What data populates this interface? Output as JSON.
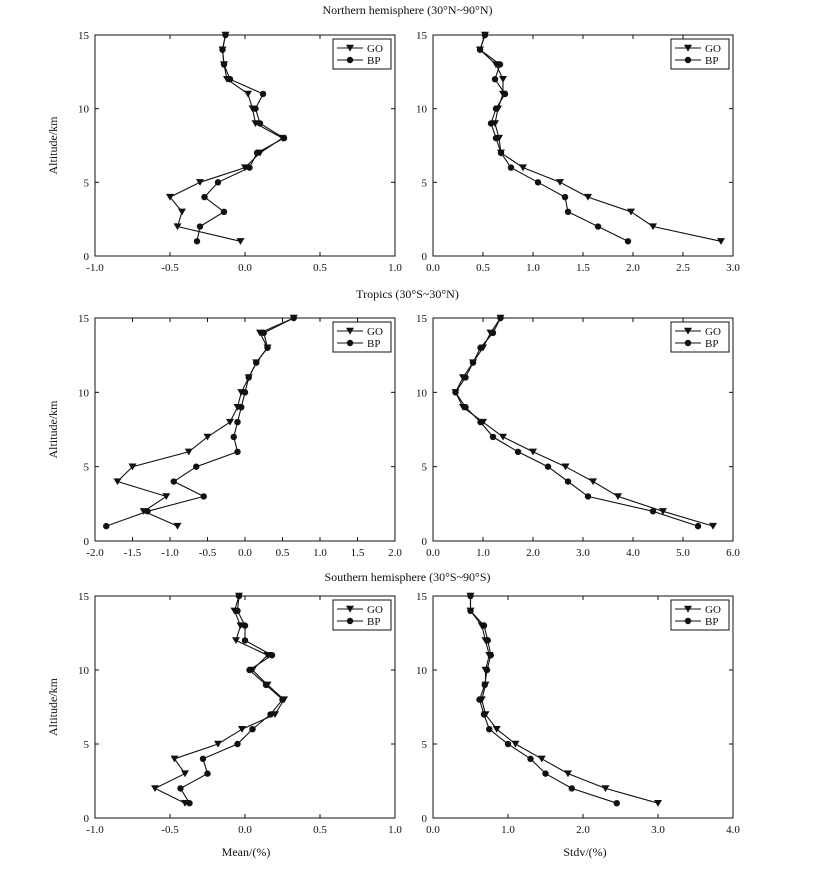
{
  "figure": {
    "rows": [
      {
        "title": "Northern hemisphere (30°N~90°N)"
      },
      {
        "title": "Tropics (30°S~30°N)"
      },
      {
        "title": "Southern hemisphere (30°S~90°S)"
      }
    ],
    "xlabel_mean": "Mean/(%)",
    "xlabel_stdv": "Stdv/(%)",
    "colors": {
      "line": "#111111",
      "background": "#ffffff"
    }
  },
  "chart_data": [
    {
      "type": "line",
      "ylabel": "Altitude/km",
      "xlim": [
        -1.0,
        1.0
      ],
      "ylim": [
        0,
        15
      ],
      "xticks": [
        "-1.0",
        "-0.5",
        "0.0",
        "0.5",
        "1.0"
      ],
      "yticks": [
        "0",
        "5",
        "10",
        "15"
      ],
      "legend": {
        "position": "top-right",
        "entries": [
          "GO",
          "BP"
        ]
      },
      "series": [
        {
          "name": "GO",
          "marker": "triangle-down",
          "points": [
            [
              -0.13,
              15
            ],
            [
              -0.15,
              14
            ],
            [
              -0.14,
              13
            ],
            [
              -0.12,
              12
            ],
            [
              0.02,
              11
            ],
            [
              0.05,
              10
            ],
            [
              0.07,
              9
            ],
            [
              0.25,
              8
            ],
            [
              0.1,
              7
            ],
            [
              0.0,
              6
            ],
            [
              -0.3,
              5
            ],
            [
              -0.5,
              4
            ],
            [
              -0.42,
              3
            ],
            [
              -0.45,
              2
            ],
            [
              -0.03,
              1
            ]
          ]
        },
        {
          "name": "BP",
          "marker": "circle",
          "points": [
            [
              -0.13,
              15
            ],
            [
              -0.15,
              14
            ],
            [
              -0.14,
              13
            ],
            [
              -0.1,
              12
            ],
            [
              0.12,
              11
            ],
            [
              0.07,
              10
            ],
            [
              0.1,
              9
            ],
            [
              0.26,
              8
            ],
            [
              0.08,
              7
            ],
            [
              0.03,
              6
            ],
            [
              -0.18,
              5
            ],
            [
              -0.27,
              4
            ],
            [
              -0.14,
              3
            ],
            [
              -0.3,
              2
            ],
            [
              -0.32,
              1
            ]
          ]
        }
      ]
    },
    {
      "type": "line",
      "ylabel": "",
      "xlim": [
        0.0,
        3.0
      ],
      "ylim": [
        0,
        15
      ],
      "xticks": [
        "0.0",
        "0.5",
        "1.0",
        "1.5",
        "2.0",
        "2.5",
        "3.0"
      ],
      "yticks": [
        "0",
        "5",
        "10",
        "15"
      ],
      "legend": {
        "position": "top-right",
        "entries": [
          "GO",
          "BP"
        ]
      },
      "series": [
        {
          "name": "GO",
          "marker": "triangle-down",
          "points": [
            [
              0.52,
              15
            ],
            [
              0.47,
              14
            ],
            [
              0.63,
              13
            ],
            [
              0.7,
              12
            ],
            [
              0.7,
              11
            ],
            [
              0.65,
              10
            ],
            [
              0.62,
              9
            ],
            [
              0.66,
              8
            ],
            [
              0.68,
              7
            ],
            [
              0.9,
              6
            ],
            [
              1.27,
              5
            ],
            [
              1.55,
              4
            ],
            [
              1.98,
              3
            ],
            [
              2.2,
              2
            ],
            [
              2.88,
              1
            ]
          ]
        },
        {
          "name": "BP",
          "marker": "circle",
          "points": [
            [
              0.52,
              15
            ],
            [
              0.47,
              14
            ],
            [
              0.67,
              13
            ],
            [
              0.62,
              12
            ],
            [
              0.72,
              11
            ],
            [
              0.63,
              10
            ],
            [
              0.58,
              9
            ],
            [
              0.63,
              8
            ],
            [
              0.68,
              7
            ],
            [
              0.78,
              6
            ],
            [
              1.05,
              5
            ],
            [
              1.32,
              4
            ],
            [
              1.35,
              3
            ],
            [
              1.65,
              2
            ],
            [
              1.95,
              1
            ]
          ]
        }
      ]
    },
    {
      "type": "line",
      "ylabel": "Altitude/km",
      "xlim": [
        -2.0,
        2.0
      ],
      "ylim": [
        0,
        15
      ],
      "xticks": [
        "-2.0",
        "-1.5",
        "-1.0",
        "-0.5",
        "0.0",
        "0.5",
        "1.0",
        "1.5",
        "2.0"
      ],
      "yticks": [
        "0",
        "5",
        "10",
        "15"
      ],
      "legend": {
        "position": "top-right",
        "entries": [
          "GO",
          "BP"
        ]
      },
      "series": [
        {
          "name": "GO",
          "marker": "triangle-down",
          "points": [
            [
              0.65,
              15
            ],
            [
              0.2,
              14
            ],
            [
              0.3,
              13
            ],
            [
              0.15,
              12
            ],
            [
              0.05,
              11
            ],
            [
              -0.05,
              10
            ],
            [
              -0.1,
              9
            ],
            [
              -0.2,
              8
            ],
            [
              -0.5,
              7
            ],
            [
              -0.75,
              6
            ],
            [
              -1.5,
              5
            ],
            [
              -1.7,
              4
            ],
            [
              -1.05,
              3
            ],
            [
              -1.35,
              2
            ],
            [
              -0.9,
              1
            ]
          ]
        },
        {
          "name": "BP",
          "marker": "circle",
          "points": [
            [
              0.65,
              15
            ],
            [
              0.25,
              14
            ],
            [
              0.3,
              13
            ],
            [
              0.15,
              12
            ],
            [
              0.05,
              11
            ],
            [
              0.0,
              10
            ],
            [
              -0.05,
              9
            ],
            [
              -0.1,
              8
            ],
            [
              -0.15,
              7
            ],
            [
              -0.1,
              6
            ],
            [
              -0.65,
              5
            ],
            [
              -0.95,
              4
            ],
            [
              -0.55,
              3
            ],
            [
              -1.3,
              2
            ],
            [
              -1.85,
              1
            ]
          ]
        }
      ]
    },
    {
      "type": "line",
      "ylabel": "",
      "xlim": [
        0.0,
        6.0
      ],
      "ylim": [
        0,
        15
      ],
      "xticks": [
        "0.0",
        "1.0",
        "2.0",
        "3.0",
        "4.0",
        "5.0",
        "6.0"
      ],
      "yticks": [
        "0",
        "5",
        "10",
        "15"
      ],
      "legend": {
        "position": "top-right",
        "entries": [
          "GO",
          "BP"
        ]
      },
      "series": [
        {
          "name": "GO",
          "marker": "triangle-down",
          "points": [
            [
              1.35,
              15
            ],
            [
              1.15,
              14
            ],
            [
              1.0,
              13
            ],
            [
              0.8,
              12
            ],
            [
              0.6,
              11
            ],
            [
              0.45,
              10
            ],
            [
              0.6,
              9
            ],
            [
              1.0,
              8
            ],
            [
              1.4,
              7
            ],
            [
              2.0,
              6
            ],
            [
              2.65,
              5
            ],
            [
              3.2,
              4
            ],
            [
              3.7,
              3
            ],
            [
              4.6,
              2
            ],
            [
              5.6,
              1
            ]
          ]
        },
        {
          "name": "BP",
          "marker": "circle",
          "points": [
            [
              1.35,
              15
            ],
            [
              1.2,
              14
            ],
            [
              0.95,
              13
            ],
            [
              0.8,
              12
            ],
            [
              0.65,
              11
            ],
            [
              0.45,
              10
            ],
            [
              0.65,
              9
            ],
            [
              0.95,
              8
            ],
            [
              1.2,
              7
            ],
            [
              1.7,
              6
            ],
            [
              2.3,
              5
            ],
            [
              2.7,
              4
            ],
            [
              3.1,
              3
            ],
            [
              4.4,
              2
            ],
            [
              5.3,
              1
            ]
          ]
        }
      ]
    },
    {
      "type": "line",
      "ylabel": "Altitude/km",
      "xlim": [
        -1.0,
        1.0
      ],
      "ylim": [
        0,
        15
      ],
      "xticks": [
        "-1.0",
        "-0.5",
        "0.0",
        "0.5",
        "1.0"
      ],
      "yticks": [
        "0",
        "5",
        "10",
        "15"
      ],
      "legend": {
        "position": "top-right",
        "entries": [
          "GO",
          "BP"
        ]
      },
      "series": [
        {
          "name": "GO",
          "marker": "triangle-down",
          "points": [
            [
              -0.04,
              15
            ],
            [
              -0.07,
              14
            ],
            [
              -0.03,
              13
            ],
            [
              -0.06,
              12
            ],
            [
              0.15,
              11
            ],
            [
              0.05,
              10
            ],
            [
              0.15,
              9
            ],
            [
              0.26,
              8
            ],
            [
              0.2,
              7
            ],
            [
              -0.02,
              6
            ],
            [
              -0.18,
              5
            ],
            [
              -0.47,
              4
            ],
            [
              -0.4,
              3
            ],
            [
              -0.6,
              2
            ],
            [
              -0.4,
              1
            ]
          ]
        },
        {
          "name": "BP",
          "marker": "circle",
          "points": [
            [
              -0.04,
              15
            ],
            [
              -0.05,
              14
            ],
            [
              0.0,
              13
            ],
            [
              0.0,
              12
            ],
            [
              0.18,
              11
            ],
            [
              0.03,
              10
            ],
            [
              0.14,
              9
            ],
            [
              0.25,
              8
            ],
            [
              0.17,
              7
            ],
            [
              0.05,
              6
            ],
            [
              -0.05,
              5
            ],
            [
              -0.28,
              4
            ],
            [
              -0.25,
              3
            ],
            [
              -0.43,
              2
            ],
            [
              -0.37,
              1
            ]
          ]
        }
      ]
    },
    {
      "type": "line",
      "ylabel": "",
      "xlim": [
        0.0,
        4.0
      ],
      "ylim": [
        0,
        15
      ],
      "xticks": [
        "0.0",
        "1.0",
        "2.0",
        "3.0",
        "4.0"
      ],
      "yticks": [
        "0",
        "5",
        "10",
        "15"
      ],
      "legend": {
        "position": "top-right",
        "entries": [
          "GO",
          "BP"
        ]
      },
      "series": [
        {
          "name": "GO",
          "marker": "triangle-down",
          "points": [
            [
              0.5,
              15
            ],
            [
              0.5,
              14
            ],
            [
              0.65,
              13
            ],
            [
              0.7,
              12
            ],
            [
              0.75,
              11
            ],
            [
              0.7,
              10
            ],
            [
              0.7,
              9
            ],
            [
              0.65,
              8
            ],
            [
              0.7,
              7
            ],
            [
              0.85,
              6
            ],
            [
              1.1,
              5
            ],
            [
              1.45,
              4
            ],
            [
              1.8,
              3
            ],
            [
              2.3,
              2
            ],
            [
              3.0,
              1
            ]
          ]
        },
        {
          "name": "BP",
          "marker": "circle",
          "points": [
            [
              0.5,
              15
            ],
            [
              0.5,
              14
            ],
            [
              0.68,
              13
            ],
            [
              0.73,
              12
            ],
            [
              0.77,
              11
            ],
            [
              0.72,
              10
            ],
            [
              0.69,
              9
            ],
            [
              0.62,
              8
            ],
            [
              0.68,
              7
            ],
            [
              0.75,
              6
            ],
            [
              1.0,
              5
            ],
            [
              1.3,
              4
            ],
            [
              1.5,
              3
            ],
            [
              1.85,
              2
            ],
            [
              2.45,
              1
            ]
          ]
        }
      ]
    }
  ]
}
